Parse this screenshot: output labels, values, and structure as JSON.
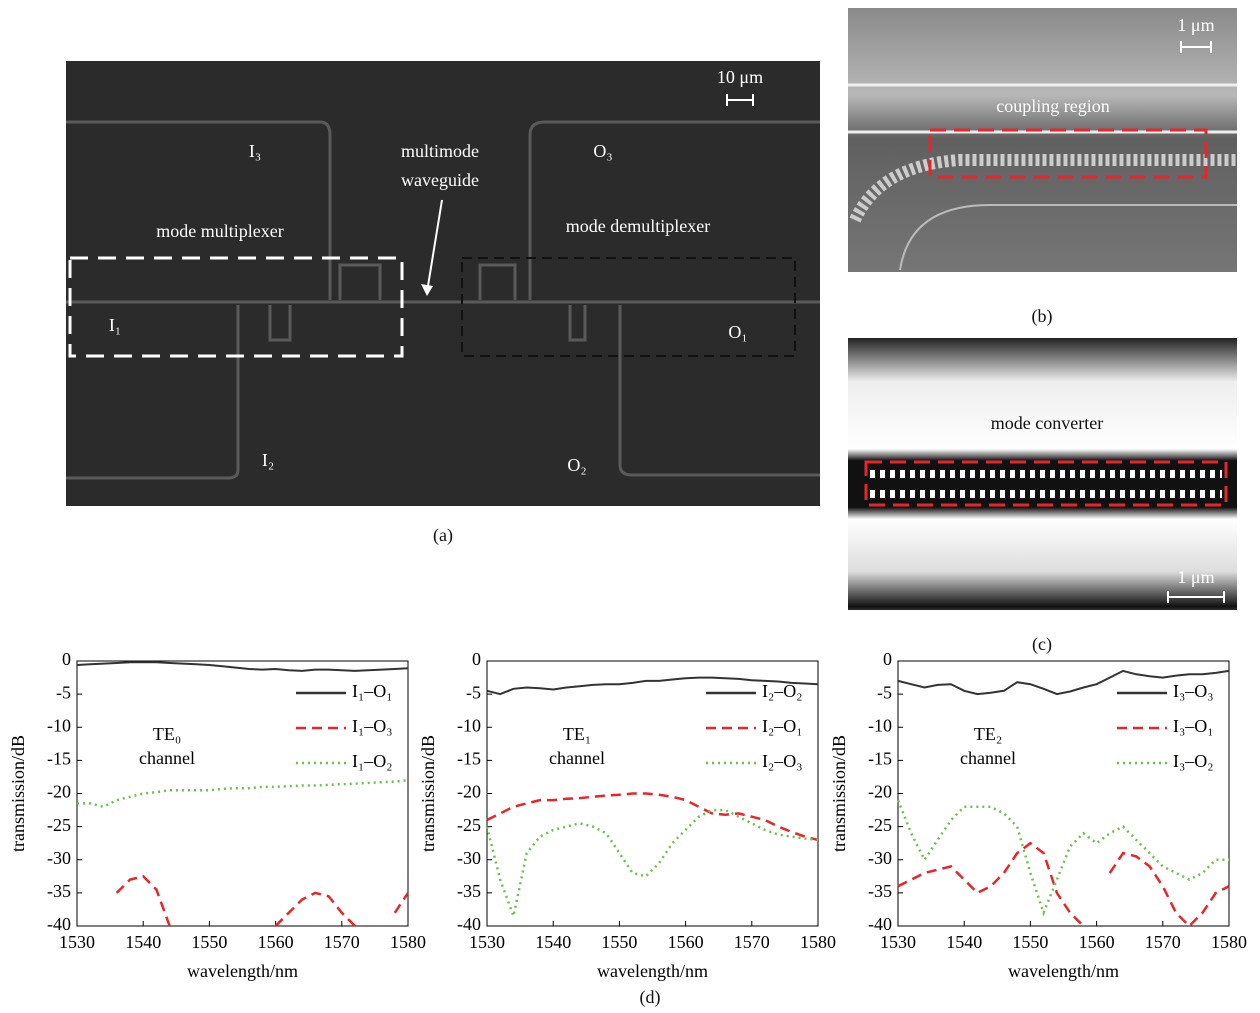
{
  "panels": {
    "a": {
      "scale": "10 μm",
      "i3": "I₃",
      "multimode": "multimode",
      "waveguide": "waveguide",
      "o3": "O₃",
      "mux": "mode multiplexer",
      "demux": "mode demultiplexer",
      "i1": "I₁",
      "o1": "O₁",
      "i2": "I₂",
      "o2": "O₂",
      "caption": "(a)"
    },
    "b": {
      "scale": "1 μm",
      "region": "coupling region",
      "caption": "(b)"
    },
    "c": {
      "region": "mode converter",
      "scale": "1 μm",
      "caption": "(c)"
    },
    "d": {
      "caption": "(d)"
    }
  },
  "chart_data": [
    {
      "type": "line",
      "xlabel": "wavelength/nm",
      "ylabel": "transmission/dB",
      "annotations": [
        "TE₀",
        "channel"
      ],
      "legend": "upper right",
      "x": [
        1530,
        1532,
        1534,
        1536,
        1538,
        1540,
        1542,
        1544,
        1546,
        1548,
        1550,
        1552,
        1554,
        1556,
        1558,
        1560,
        1562,
        1564,
        1566,
        1568,
        1570,
        1572,
        1574,
        1576,
        1578,
        1580
      ],
      "xlim": [
        1530,
        1580
      ],
      "xticks": [
        1530,
        1540,
        1550,
        1560,
        1570,
        1580
      ],
      "ylim": [
        -40,
        0
      ],
      "yticks": [
        0,
        -5,
        -10,
        -15,
        -20,
        -25,
        -30,
        -35,
        -40
      ],
      "series": [
        {
          "name": "I₁–O₁",
          "color": "#333333",
          "style": "solid",
          "values": [
            -0.6,
            -0.5,
            -0.4,
            -0.3,
            -0.2,
            -0.2,
            -0.2,
            -0.3,
            -0.4,
            -0.5,
            -0.6,
            -0.8,
            -1.0,
            -1.2,
            -1.3,
            -1.2,
            -1.4,
            -1.5,
            -1.3,
            -1.3,
            -1.4,
            -1.5,
            -1.4,
            -1.3,
            -1.2,
            -1.1
          ]
        },
        {
          "name": "I₁–O₃",
          "color": "#e8262a",
          "style": "dashed",
          "values": [
            -38,
            null,
            null,
            -35,
            -33,
            -32.5,
            -34.5,
            -40,
            null,
            null,
            null,
            null,
            -40,
            null,
            null,
            -40,
            -38,
            -36,
            -35,
            -35.5,
            -38,
            -40,
            null,
            null,
            -38,
            -35
          ]
        },
        {
          "name": "I₁–O₂",
          "color": "#6cc04a",
          "style": "dotted",
          "values": [
            -21.5,
            -21.5,
            -22,
            -21,
            -20.5,
            -20,
            -19.8,
            -19.5,
            -19.5,
            -19.5,
            -19.5,
            -19.3,
            -19.2,
            -19.2,
            -19,
            -19,
            -18.9,
            -18.8,
            -18.8,
            -18.7,
            -18.6,
            -18.5,
            -18.4,
            -18.3,
            -18.2,
            -18
          ]
        }
      ]
    },
    {
      "type": "line",
      "xlabel": "wavelength/nm",
      "ylabel": "transmission/dB",
      "annotations": [
        "TE₁",
        "channel"
      ],
      "legend": "upper right",
      "x": [
        1530,
        1532,
        1534,
        1536,
        1538,
        1540,
        1542,
        1544,
        1546,
        1548,
        1550,
        1552,
        1554,
        1556,
        1558,
        1560,
        1562,
        1564,
        1566,
        1568,
        1570,
        1572,
        1574,
        1576,
        1578,
        1580
      ],
      "xlim": [
        1530,
        1580
      ],
      "xticks": [
        1530,
        1540,
        1550,
        1560,
        1570,
        1580
      ],
      "ylim": [
        -40,
        0
      ],
      "yticks": [
        0,
        -5,
        -10,
        -15,
        -20,
        -25,
        -30,
        -35,
        -40
      ],
      "series": [
        {
          "name": "I₂–O₂",
          "color": "#333333",
          "style": "solid",
          "values": [
            -4.5,
            -5,
            -4.2,
            -4,
            -4.1,
            -4.3,
            -4,
            -3.8,
            -3.6,
            -3.5,
            -3.5,
            -3.3,
            -3,
            -3,
            -2.8,
            -2.6,
            -2.5,
            -2.5,
            -2.6,
            -2.7,
            -2.9,
            -3,
            -3.1,
            -3.3,
            -3.4,
            -3.5
          ]
        },
        {
          "name": "I₂–O₁",
          "color": "#e8262a",
          "style": "dashed",
          "values": [
            -24,
            -23,
            -22,
            -21.5,
            -21,
            -21,
            -20.8,
            -20.7,
            -20.5,
            -20.3,
            -20.2,
            -20,
            -20,
            -20.2,
            -20.5,
            -21,
            -22,
            -23,
            -23.2,
            -23,
            -23.5,
            -24,
            -25,
            -25.8,
            -26.5,
            -27
          ]
        },
        {
          "name": "I₂–O₃",
          "color": "#6cc04a",
          "style": "dotted",
          "values": [
            -25,
            -33,
            -38.5,
            -29,
            -26.5,
            -25.5,
            -25,
            -24.5,
            -25,
            -26,
            -29,
            -32,
            -32.5,
            -30.5,
            -27.5,
            -25.5,
            -23.5,
            -22.5,
            -22.5,
            -23.5,
            -24.5,
            -25.5,
            -26.2,
            -26.5,
            -26.8,
            -27
          ]
        }
      ]
    },
    {
      "type": "line",
      "xlabel": "wavelength/nm",
      "ylabel": "transmission/dB",
      "annotations": [
        "TE₂",
        "channel"
      ],
      "legend": "upper right",
      "x": [
        1530,
        1532,
        1534,
        1536,
        1538,
        1540,
        1542,
        1544,
        1546,
        1548,
        1550,
        1552,
        1554,
        1556,
        1558,
        1560,
        1562,
        1564,
        1566,
        1568,
        1570,
        1572,
        1574,
        1576,
        1578,
        1580
      ],
      "xlim": [
        1530,
        1580
      ],
      "xticks": [
        1530,
        1540,
        1550,
        1560,
        1570,
        1580
      ],
      "ylim": [
        -40,
        0
      ],
      "yticks": [
        0,
        -5,
        -10,
        -15,
        -20,
        -25,
        -30,
        -35,
        -40
      ],
      "series": [
        {
          "name": "I₃–O₃",
          "color": "#333333",
          "style": "solid",
          "values": [
            -3,
            -3.5,
            -4,
            -3.6,
            -3.5,
            -4.5,
            -5,
            -4.8,
            -4.5,
            -3.2,
            -3.5,
            -4.2,
            -5,
            -4.6,
            -4,
            -3.5,
            -2.5,
            -1.5,
            -2,
            -2.3,
            -2.5,
            -2.2,
            -2,
            -2,
            -1.8,
            -1.5
          ]
        },
        {
          "name": "I₃–O₁",
          "color": "#e8262a",
          "style": "dashed",
          "values": [
            -34,
            -33,
            -32,
            -31.5,
            -31,
            -33,
            -35,
            -34,
            -32,
            -29,
            -27.5,
            -29,
            -35,
            -38,
            -40,
            null,
            -32,
            -29,
            -29.5,
            -31,
            -34,
            -38,
            -40,
            -38,
            -35,
            -34
          ]
        },
        {
          "name": "I₃–O₂",
          "color": "#6cc04a",
          "style": "dotted",
          "values": [
            -21,
            -26,
            -30,
            -27,
            -24,
            -22,
            -22,
            -22,
            -23,
            -25,
            -32,
            -38,
            -33,
            -28,
            -26,
            -27.5,
            -26,
            -25,
            -27,
            -29,
            -31,
            -32,
            -33,
            -32,
            -30,
            -30
          ]
        }
      ]
    }
  ]
}
